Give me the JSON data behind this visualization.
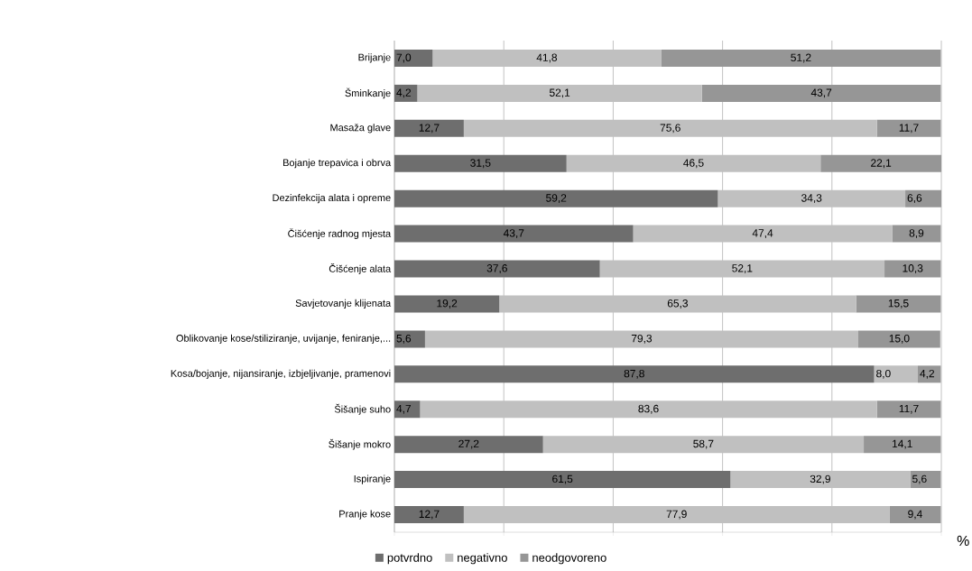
{
  "chart_data": {
    "type": "bar",
    "orientation": "horizontal",
    "stacked": true,
    "xlabel": "%",
    "categories": [
      "Brijanje",
      "Šminkanje",
      "Masaža glave",
      "Bojanje trepavica i obrva",
      "Dezinfekcija alata i opreme",
      "Čišćenje radnog mjesta",
      "Čišćenje alata",
      "Savjetovanje klijenata",
      "Oblikovanje kose/stiliziranje, uvijanje, feniranje,...",
      "Kosa/bojanje, nijansiranje, izbjeljivanje, pramenovi",
      "Šišanje suho",
      "Šišanje mokro",
      "Ispiranje",
      "Pranje kose"
    ],
    "series": [
      {
        "name": "potvrdno",
        "color": "#6e6e6e",
        "values": [
          7.0,
          4.2,
          12.7,
          31.5,
          59.2,
          43.7,
          37.6,
          19.2,
          5.6,
          87.8,
          4.7,
          27.2,
          61.5,
          12.7
        ],
        "value_labels": [
          "7,0",
          "4,2",
          "12,7",
          "31,5",
          "59,2",
          "43,7",
          "37,6",
          "19,2",
          "5,6",
          "87,8",
          "4,7",
          "27,2",
          "61,5",
          "12,7"
        ]
      },
      {
        "name": "negativno",
        "color": "#c0c0c0",
        "values": [
          41.8,
          52.1,
          75.6,
          46.5,
          34.3,
          47.4,
          52.1,
          65.3,
          79.3,
          8.0,
          83.6,
          58.7,
          32.9,
          77.9
        ],
        "value_labels": [
          "41,8",
          "52,1",
          "75,6",
          "46,5",
          "34,3",
          "47,4",
          "52,1",
          "65,3",
          "79,3",
          "8,0",
          "83,6",
          "58,7",
          "32,9",
          "77,9"
        ]
      },
      {
        "name": "neodgovoreno",
        "color": "#969696",
        "values": [
          51.2,
          43.7,
          11.7,
          22.1,
          6.6,
          8.9,
          10.3,
          15.5,
          15.0,
          4.2,
          11.7,
          14.1,
          5.6,
          9.4
        ],
        "value_labels": [
          "51,2",
          "43,7",
          "11,7",
          "22,1",
          "6,6",
          "8,9",
          "10,3",
          "15,5",
          "15,0",
          "4,2",
          "11,7",
          "14,1",
          "5,6",
          "9,4"
        ]
      }
    ],
    "tick_labels": "y",
    "grid": "x",
    "legend": "bottom"
  }
}
